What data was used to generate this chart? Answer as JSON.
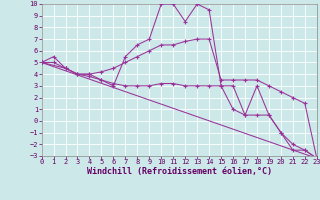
{
  "background_color": "#cce8e8",
  "grid_color": "#b0d8d8",
  "line_color": "#993399",
  "xlabel": "Windchill (Refroidissement éolien,°C)",
  "xlim": [
    0,
    23
  ],
  "ylim": [
    -3,
    10
  ],
  "xticks": [
    0,
    1,
    2,
    3,
    4,
    5,
    6,
    7,
    8,
    9,
    10,
    11,
    12,
    13,
    14,
    15,
    16,
    17,
    18,
    19,
    20,
    21,
    22,
    23
  ],
  "yticks": [
    -3,
    -2,
    -1,
    0,
    1,
    2,
    3,
    4,
    5,
    6,
    7,
    8,
    9,
    10
  ],
  "lines": [
    {
      "x": [
        0,
        1,
        2,
        3,
        4,
        5,
        6,
        7,
        8,
        9,
        10,
        11,
        12,
        13,
        14,
        15,
        16,
        17,
        18,
        19,
        20,
        21,
        22,
        23
      ],
      "y": [
        5.0,
        5.5,
        4.5,
        4.0,
        4.0,
        3.5,
        3.0,
        5.5,
        6.5,
        7.0,
        10.0,
        10.0,
        8.5,
        10.0,
        9.5,
        3.0,
        3.0,
        0.5,
        3.0,
        0.5,
        -1.0,
        -2.5,
        -2.5,
        -3.2
      ]
    },
    {
      "x": [
        0,
        1,
        2,
        3,
        4,
        5,
        6,
        7,
        8,
        9,
        10,
        11,
        12,
        13,
        14,
        15,
        16,
        17,
        18,
        19,
        20,
        21,
        22,
        23
      ],
      "y": [
        5.0,
        5.0,
        4.5,
        4.0,
        4.0,
        4.2,
        4.5,
        5.0,
        5.5,
        6.0,
        6.5,
        6.5,
        6.8,
        7.0,
        7.0,
        3.5,
        3.5,
        3.5,
        3.5,
        3.0,
        2.5,
        2.0,
        1.5,
        -3.2
      ]
    },
    {
      "x": [
        0,
        2,
        3,
        4,
        5,
        6,
        7,
        8,
        9,
        10,
        11,
        12,
        13,
        14,
        15,
        16,
        17,
        18,
        19,
        20,
        21,
        22,
        23
      ],
      "y": [
        5.0,
        4.5,
        4.0,
        3.8,
        3.5,
        3.2,
        3.0,
        3.0,
        3.0,
        3.2,
        3.2,
        3.0,
        3.0,
        3.0,
        3.0,
        1.0,
        0.5,
        0.5,
        0.5,
        -1.0,
        -2.0,
        -2.5,
        -3.2
      ]
    },
    {
      "x": [
        0,
        23
      ],
      "y": [
        5.0,
        -3.2
      ]
    }
  ],
  "tick_fontsize": 5.0,
  "label_fontsize": 6.0,
  "figwidth": 3.2,
  "figheight": 2.0,
  "dpi": 100
}
